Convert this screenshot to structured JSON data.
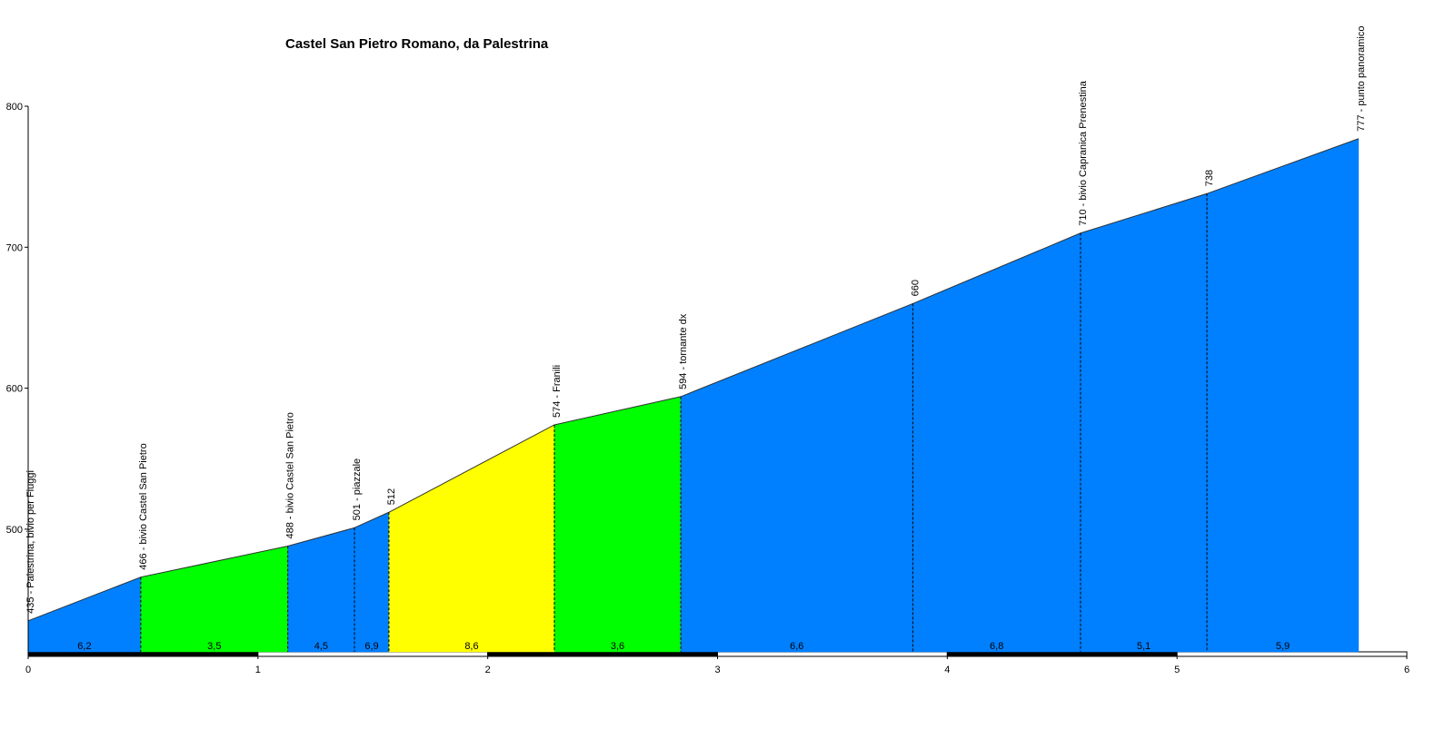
{
  "chart_data": {
    "type": "elevation-profile",
    "title": "Castel San Pietro Romano, da Palestrina",
    "x": [
      0,
      0.49,
      1.13,
      1.42,
      1.57,
      2.29,
      2.84,
      3.85,
      4.58,
      5.13,
      5.79
    ],
    "values": [
      435,
      466,
      488,
      501,
      512,
      574,
      594,
      660,
      710,
      738,
      777
    ],
    "value_labels": [
      "435 - Palestrina, bivio per Fiuggi",
      "466 - bivio Castel San Pietro",
      "488 - bivio Castel San Pietro",
      "501 - piazzale",
      "512",
      "574 - Franili",
      "594 - tornante dx",
      "660",
      "710 - bivio Capranica Prenestina",
      "738",
      "777 - punto panoramico"
    ],
    "gradients": {
      "values": [
        6.2,
        3.5,
        4.5,
        6.9,
        8.6,
        3.6,
        6.6,
        6.8,
        5.1,
        5.9
      ],
      "value_labels": [
        "6,2",
        "3,5",
        "4,5",
        "6,9",
        "8,6",
        "3,6",
        "6,6",
        "6,8",
        "5,1",
        "5,9"
      ],
      "colors": [
        "#0080ff",
        "#00ff00",
        "#0080ff",
        "#0080ff",
        "#ffff00",
        "#00ff00",
        "#0080ff",
        "#0080ff",
        "#0080ff",
        "#0080ff"
      ]
    },
    "xlim": [
      0,
      6
    ],
    "xticks": [
      0,
      1,
      2,
      3,
      4,
      5,
      6
    ],
    "ylim": [
      413,
      800
    ],
    "yticks": [
      500,
      600,
      700,
      800
    ]
  }
}
